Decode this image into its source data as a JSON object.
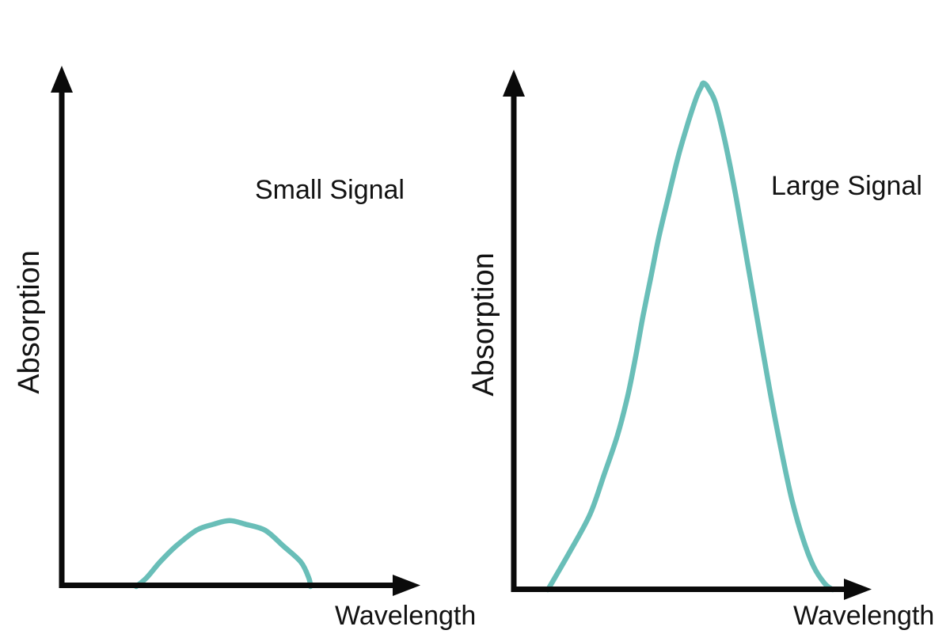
{
  "colors": {
    "curve": "#69beb8",
    "axis": "#0a0a0a",
    "text": "#121212",
    "background": "#ffffff"
  },
  "chart_data": [
    {
      "type": "line",
      "title": "Small Signal",
      "xlabel": "Wavelength",
      "ylabel": "Absorption",
      "grid": false,
      "ticks": false,
      "legend": "none",
      "xlim": [
        0,
        1
      ],
      "ylim": [
        0,
        1
      ],
      "series_color": "#69beb8",
      "peak_relative_height": 0.13,
      "peak_x_relative": 0.485,
      "points": [
        [
          0.215,
          0.0
        ],
        [
          0.245,
          0.017
        ],
        [
          0.284,
          0.048
        ],
        [
          0.33,
          0.079
        ],
        [
          0.389,
          0.11
        ],
        [
          0.439,
          0.122
        ],
        [
          0.485,
          0.129
        ],
        [
          0.531,
          0.122
        ],
        [
          0.588,
          0.11
        ],
        [
          0.641,
          0.079
        ],
        [
          0.691,
          0.048
        ],
        [
          0.714,
          0.017
        ],
        [
          0.719,
          0.0
        ]
      ]
    },
    {
      "type": "line",
      "title": "Large Signal",
      "xlabel": "Wavelength",
      "ylabel": "Absorption",
      "grid": false,
      "ticks": false,
      "legend": "none",
      "xlim": [
        0,
        1
      ],
      "ylim": [
        0,
        1
      ],
      "series_color": "#69beb8",
      "peak_relative_height": 0.99,
      "peak_x_relative": 0.549,
      "points": [
        [
          0.099,
          0.0
        ],
        [
          0.159,
          0.07
        ],
        [
          0.221,
          0.147
        ],
        [
          0.262,
          0.225
        ],
        [
          0.301,
          0.302
        ],
        [
          0.331,
          0.38
        ],
        [
          0.354,
          0.457
        ],
        [
          0.375,
          0.535
        ],
        [
          0.398,
          0.612
        ],
        [
          0.421,
          0.69
        ],
        [
          0.448,
          0.767
        ],
        [
          0.476,
          0.845
        ],
        [
          0.499,
          0.899
        ],
        [
          0.517,
          0.938
        ],
        [
          0.533,
          0.969
        ],
        [
          0.545,
          0.986
        ],
        [
          0.549,
          0.992
        ],
        [
          0.557,
          0.99
        ],
        [
          0.566,
          0.981
        ],
        [
          0.586,
          0.953
        ],
        [
          0.614,
          0.876
        ],
        [
          0.646,
          0.767
        ],
        [
          0.678,
          0.643
        ],
        [
          0.71,
          0.519
        ],
        [
          0.742,
          0.395
        ],
        [
          0.775,
          0.279
        ],
        [
          0.807,
          0.178
        ],
        [
          0.839,
          0.101
        ],
        [
          0.871,
          0.045
        ],
        [
          0.903,
          0.012
        ],
        [
          0.926,
          0.0
        ]
      ]
    }
  ]
}
